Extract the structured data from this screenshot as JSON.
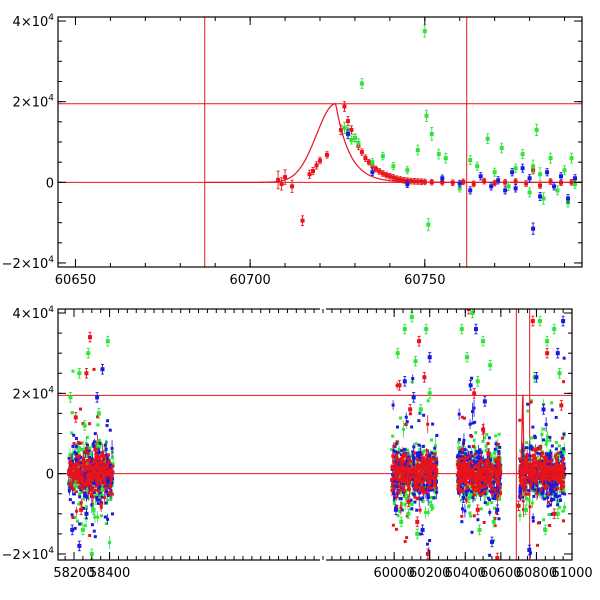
{
  "colors": {
    "red": "#e8141b",
    "green": "#2ee63a",
    "blue": "#1a1adc",
    "axis": "#000000"
  },
  "chart_data": [
    {
      "type": "scatter",
      "title": "",
      "xlabel": "",
      "ylabel": "",
      "xlim": [
        60645,
        60795
      ],
      "ylim": [
        -21000,
        41000
      ],
      "grid": false,
      "x_ticks": [
        {
          "value": 60650,
          "label": "60650"
        },
        {
          "value": 60700,
          "label": "60700"
        },
        {
          "value": 60750,
          "label": "60750"
        }
      ],
      "y_ticks": [
        {
          "value": 40000,
          "base": "4×10",
          "exp": "4"
        },
        {
          "value": 20000,
          "base": "2×10",
          "exp": "4"
        },
        {
          "value": 0,
          "base": "0",
          "exp": ""
        },
        {
          "value": -20000,
          "base": "−2×10",
          "exp": "4"
        }
      ],
      "reference_lines": {
        "vertical": [
          60687,
          60762
        ],
        "horizontal": [
          19500,
          0
        ]
      },
      "model_curve": {
        "peak_x": 60724.5,
        "peak_y": 19500,
        "rise_width": 5.5,
        "decay_tau": 4.0,
        "x_range": [
          60687,
          60795
        ]
      },
      "series": [
        {
          "name": "red",
          "color": "red",
          "points": [
            [
              60708,
              600,
              2200
            ],
            [
              60709,
              -400,
              1500
            ],
            [
              60710,
              1300,
              1800
            ],
            [
              60712,
              -1000,
              1500
            ],
            [
              60715,
              -9500,
              1200
            ],
            [
              60717,
              2000,
              1000
            ],
            [
              60718,
              2800,
              900
            ],
            [
              60719,
              4200,
              900
            ],
            [
              60720,
              5400,
              800
            ],
            [
              60722,
              6800,
              800
            ],
            [
              60726,
              13000,
              1200
            ],
            [
              60727,
              18800,
              1200
            ],
            [
              60728,
              15200,
              1100
            ],
            [
              60729,
              13000,
              1000
            ],
            [
              60730,
              11000,
              900
            ],
            [
              60731,
              9000,
              900
            ],
            [
              60732,
              7500,
              800
            ],
            [
              60733,
              6000,
              800
            ],
            [
              60734,
              5000,
              700
            ],
            [
              60735,
              4000,
              700
            ],
            [
              60736,
              3300,
              700
            ],
            [
              60737,
              2700,
              700
            ],
            [
              60738,
              2200,
              700
            ],
            [
              60739,
              1800,
              700
            ],
            [
              60740,
              1500,
              700
            ],
            [
              60741,
              1200,
              700
            ],
            [
              60742,
              900,
              700
            ],
            [
              60743,
              700,
              700
            ],
            [
              60744,
              500,
              700
            ],
            [
              60745,
              400,
              700
            ],
            [
              60746,
              300,
              700
            ],
            [
              60747,
              250,
              700
            ],
            [
              60748,
              200,
              700
            ],
            [
              60749,
              150,
              700
            ],
            [
              60750,
              100,
              700
            ],
            [
              60752,
              50,
              700
            ],
            [
              60755,
              0,
              700
            ],
            [
              60758,
              -100,
              700
            ],
            [
              60761,
              100,
              700
            ],
            [
              60764,
              -400,
              700
            ],
            [
              60767,
              300,
              700
            ],
            [
              60770,
              -200,
              700
            ],
            [
              60773,
              0,
              700
            ],
            [
              60776,
              200,
              700
            ],
            [
              60779,
              -300,
              700
            ],
            [
              60781,
              3000,
              900
            ],
            [
              60783,
              -800,
              700
            ],
            [
              60786,
              200,
              700
            ],
            [
              60789,
              -100,
              700
            ],
            [
              60792,
              0,
              700
            ]
          ]
        },
        {
          "name": "green",
          "color": "green",
          "points": [
            [
              60727,
              13500,
              1400
            ],
            [
              60728,
              12500,
              1200
            ],
            [
              60729,
              10500,
              1000
            ],
            [
              60730,
              11000,
              1000
            ],
            [
              60731,
              9800,
              1000
            ],
            [
              60732,
              24500,
              1200
            ],
            [
              60735,
              5000,
              900
            ],
            [
              60738,
              6500,
              900
            ],
            [
              60741,
              4000,
              900
            ],
            [
              60745,
              3000,
              900
            ],
            [
              60748,
              8000,
              1200
            ],
            [
              60750,
              37500,
              1500
            ],
            [
              60750.5,
              16500,
              1400
            ],
            [
              60751,
              -10500,
              1500
            ],
            [
              60752,
              12000,
              1600
            ],
            [
              60754,
              7000,
              1200
            ],
            [
              60756,
              6000,
              1200
            ],
            [
              60760,
              -1500,
              900
            ],
            [
              60763,
              5500,
              1100
            ],
            [
              60765,
              4000,
              1000
            ],
            [
              60768,
              10800,
              1200
            ],
            [
              60770,
              2500,
              1000
            ],
            [
              60772,
              8500,
              1200
            ],
            [
              60774,
              -1000,
              1000
            ],
            [
              60776,
              3500,
              1000
            ],
            [
              60778,
              7000,
              1100
            ],
            [
              60780,
              -2500,
              1100
            ],
            [
              60781,
              4000,
              1500
            ],
            [
              60782,
              13000,
              1400
            ],
            [
              60783,
              2000,
              1600
            ],
            [
              60784,
              -4000,
              1400
            ],
            [
              60786,
              6000,
              1200
            ],
            [
              60788,
              -2000,
              1100
            ],
            [
              60790,
              3000,
              1100
            ],
            [
              60791,
              -5000,
              1100
            ],
            [
              60792,
              6000,
              1200
            ],
            [
              60793,
              -500,
              1000
            ]
          ]
        },
        {
          "name": "blue",
          "color": "blue",
          "points": [
            [
              60728,
              12000,
              1200
            ],
            [
              60735,
              2500,
              800
            ],
            [
              60745,
              -500,
              800
            ],
            [
              60755,
              1000,
              800
            ],
            [
              60760,
              -300,
              800
            ],
            [
              60763,
              -2000,
              900
            ],
            [
              60766,
              1500,
              900
            ],
            [
              60769,
              -1000,
              900
            ],
            [
              60771,
              500,
              900
            ],
            [
              60773,
              -2000,
              900
            ],
            [
              60775,
              2500,
              900
            ],
            [
              60776,
              -1500,
              900
            ],
            [
              60778,
              3500,
              1000
            ],
            [
              60780,
              1000,
              900
            ],
            [
              60781,
              -11500,
              1400
            ],
            [
              60783,
              -3500,
              1000
            ],
            [
              60785,
              2500,
              900
            ],
            [
              60787,
              -1000,
              900
            ],
            [
              60789,
              1500,
              900
            ],
            [
              60791,
              -4000,
              1000
            ],
            [
              60793,
              1000,
              900
            ]
          ]
        }
      ]
    },
    {
      "type": "scatter",
      "title": "",
      "xlabel": "",
      "ylabel": "",
      "xlim": [
        58110,
        61000
      ],
      "ylim": [
        -21500,
        41000
      ],
      "grid": false,
      "x_ticks": [
        {
          "value": 58200,
          "label": "58200"
        },
        {
          "value": 58400,
          "label": "58400"
        },
        {
          "value": 60000,
          "label": "60000"
        },
        {
          "value": 60200,
          "label": "60200"
        },
        {
          "value": 60400,
          "label": "60400"
        },
        {
          "value": 60600,
          "label": "60600"
        },
        {
          "value": 60800,
          "label": "60800"
        },
        {
          "value": 61000,
          "label": "61000"
        }
      ],
      "y_ticks": [
        {
          "value": 40000,
          "base": "4×10",
          "exp": "4"
        },
        {
          "value": 20000,
          "base": "2×10",
          "exp": "4"
        },
        {
          "value": 0,
          "base": "0",
          "exp": ""
        },
        {
          "value": -20000,
          "base": "−2×10",
          "exp": "4"
        }
      ],
      "reference_lines": {
        "vertical": [
          60687,
          60762
        ],
        "horizontal": [
          19500,
          0
        ]
      },
      "seasons": [
        {
          "name": "season-1",
          "x_range": [
            58170,
            58420
          ]
        },
        {
          "name": "season-2",
          "x_range": [
            59985,
            60240
          ]
        },
        {
          "name": "season-3",
          "x_range": [
            60355,
            60600
          ]
        },
        {
          "name": "season-4",
          "x_range": [
            60705,
            60960
          ]
        }
      ],
      "model_curve": {
        "peak_x": 60724.5,
        "peak_y": 19500,
        "rise_width": 5.5,
        "decay_tau": 4.0,
        "x_range": [
          60687,
          60800
        ]
      },
      "series": [
        {
          "name": "green",
          "color": "green",
          "points": [
            [
              58180,
              19000
            ],
            [
              58230,
              25000
            ],
            [
              58260,
              12000
            ],
            [
              58280,
              30000
            ],
            [
              58310,
              -9000
            ],
            [
              58330,
              7000
            ],
            [
              58360,
              -4000
            ],
            [
              58390,
              33000
            ],
            [
              58250,
              -14000
            ],
            [
              58300,
              -20000
            ],
            [
              58340,
              15000
            ],
            [
              58210,
              -3000
            ],
            [
              60020,
              30000
            ],
            [
              60060,
              36000
            ],
            [
              60100,
              39000
            ],
            [
              60120,
              28000
            ],
            [
              60150,
              16000
            ],
            [
              60180,
              36000
            ],
            [
              60210,
              -8000
            ],
            [
              60080,
              -10000
            ],
            [
              60130,
              -15000
            ],
            [
              60200,
              20000
            ],
            [
              60040,
              -12000
            ],
            [
              60380,
              36000
            ],
            [
              60410,
              29000
            ],
            [
              60440,
              40000
            ],
            [
              60470,
              23000
            ],
            [
              60500,
              33000
            ],
            [
              60540,
              27000
            ],
            [
              60420,
              -6000
            ],
            [
              60480,
              -14000
            ],
            [
              60560,
              -12000
            ],
            [
              60740,
              -9000
            ],
            [
              60790,
              24000
            ],
            [
              60820,
              38000
            ],
            [
              60860,
              33000
            ],
            [
              60900,
              36000
            ],
            [
              60930,
              25000
            ],
            [
              60850,
              -14000
            ],
            [
              60920,
              -10000
            ]
          ]
        },
        {
          "name": "red",
          "color": "red",
          "points": [
            [
              58210,
              14000
            ],
            [
              58270,
              25000
            ],
            [
              58290,
              34000
            ],
            [
              58320,
              6000
            ],
            [
              58240,
              -9000
            ],
            [
              58300,
              -4000
            ],
            [
              60030,
              22000
            ],
            [
              60090,
              16000
            ],
            [
              60140,
              33000
            ],
            [
              60170,
              24000
            ],
            [
              60080,
              -7000
            ],
            [
              60190,
              -20000
            ],
            [
              60130,
              -12000
            ],
            [
              60420,
              41000
            ],
            [
              60450,
              20000
            ],
            [
              60500,
              11000
            ],
            [
              60530,
              5000
            ],
            [
              60470,
              -9000
            ],
            [
              60580,
              -21000
            ],
            [
              60700,
              -8000
            ],
            [
              60780,
              38000
            ],
            [
              60860,
              30000
            ],
            [
              60900,
              -10000
            ],
            [
              60940,
              17000
            ]
          ]
        },
        {
          "name": "blue",
          "color": "blue",
          "points": [
            [
              58190,
              -14000
            ],
            [
              58230,
              -18000
            ],
            [
              58270,
              -10000
            ],
            [
              58330,
              19000
            ],
            [
              58360,
              26000
            ],
            [
              58390,
              -2000
            ],
            [
              60010,
              -9000
            ],
            [
              60060,
              23000
            ],
            [
              60110,
              19000
            ],
            [
              60160,
              -14000
            ],
            [
              60200,
              29000
            ],
            [
              60390,
              -6000
            ],
            [
              60430,
              22000
            ],
            [
              60460,
              36000
            ],
            [
              60510,
              18000
            ],
            [
              60550,
              -17000
            ],
            [
              60580,
              -9000
            ],
            [
              60760,
              -19000
            ],
            [
              60800,
              24000
            ],
            [
              60840,
              16000
            ],
            [
              60890,
              -3000
            ],
            [
              60920,
              30000
            ],
            [
              60950,
              38000
            ]
          ]
        }
      ]
    }
  ]
}
